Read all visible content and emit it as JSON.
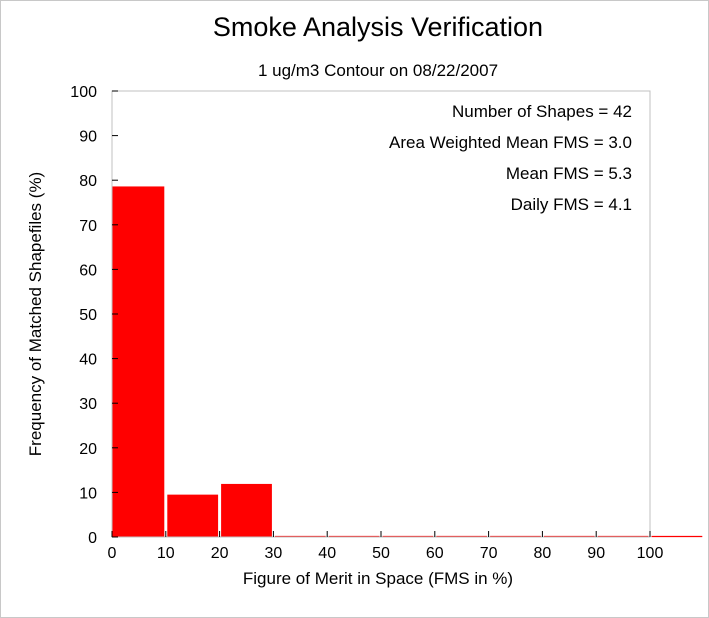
{
  "chart_data": {
    "type": "bar",
    "title": "Smoke Analysis Verification",
    "subtitle": "1 ug/m3 Contour on 08/22/2007",
    "xlabel": "Figure of Merit in Space (FMS in %)",
    "ylabel": "Frequency of Matched Shapefiles (%)",
    "xlim": [
      0,
      100
    ],
    "ylim": [
      0,
      100
    ],
    "xticks": [
      0,
      10,
      20,
      30,
      40,
      50,
      60,
      70,
      80,
      90,
      100
    ],
    "yticks": [
      0,
      10,
      20,
      30,
      40,
      50,
      60,
      70,
      80,
      90,
      100
    ],
    "bins": [
      {
        "x0": 0,
        "x1": 10,
        "value": 78.6
      },
      {
        "x0": 10,
        "x1": 20,
        "value": 9.5
      },
      {
        "x0": 20,
        "x1": 30,
        "value": 11.9
      },
      {
        "x0": 30,
        "x1": 40,
        "value": 0
      },
      {
        "x0": 40,
        "x1": 50,
        "value": 0
      },
      {
        "x0": 50,
        "x1": 60,
        "value": 0
      },
      {
        "x0": 60,
        "x1": 70,
        "value": 0
      },
      {
        "x0": 70,
        "x1": 80,
        "value": 0
      },
      {
        "x0": 80,
        "x1": 90,
        "value": 0
      },
      {
        "x0": 90,
        "x1": 100,
        "value": 0
      },
      {
        "x0": 100,
        "x1": 110,
        "value": 0
      }
    ],
    "bar_color": "#ff0000",
    "annotations": [
      "Number of Shapes = 42",
      "Area Weighted Mean FMS = 3.0",
      "Mean FMS = 5.3",
      "Daily FMS = 4.1"
    ],
    "grid": false
  }
}
